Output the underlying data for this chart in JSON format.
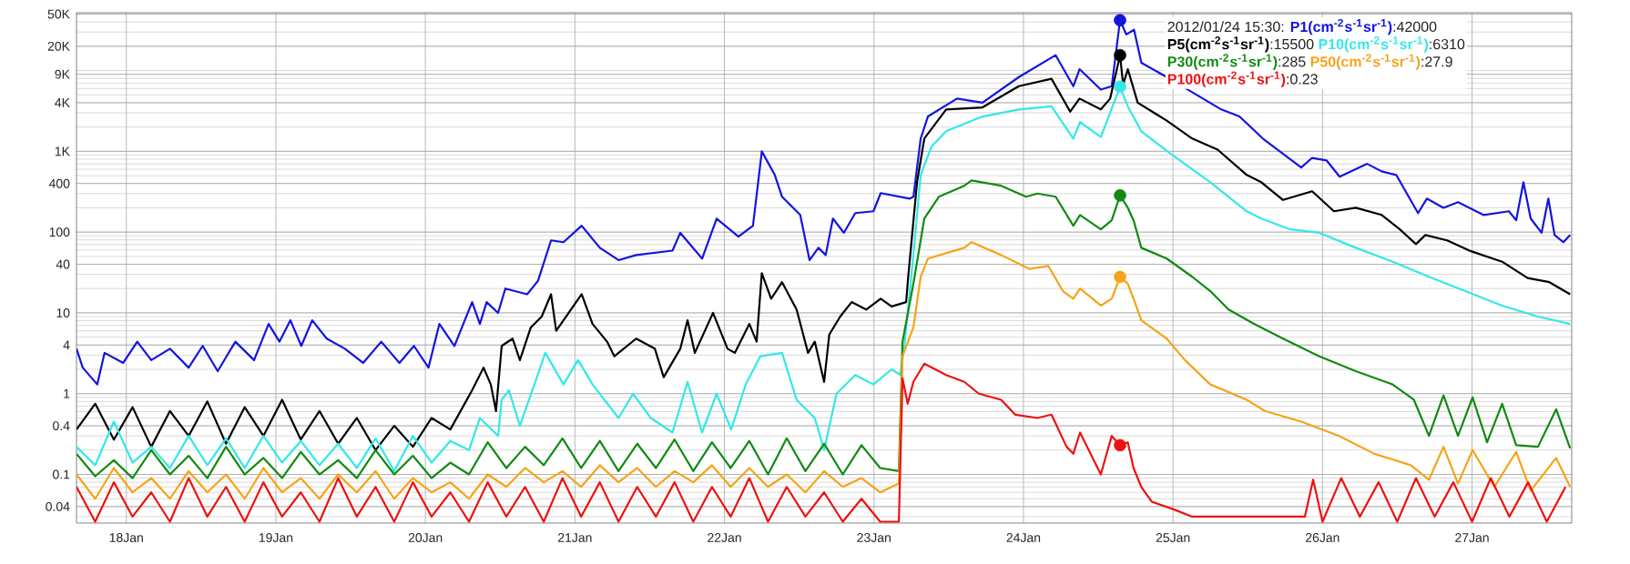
{
  "chart_data": {
    "type": "line",
    "log": "y",
    "grid": true,
    "legend": "top right",
    "xlim": [
      "2012-01-17T16:00",
      "2012-01-27T16:00"
    ],
    "xticks": [
      {
        "value": "2012-01-18",
        "label": "18Jan"
      },
      {
        "value": "2012-01-19",
        "label": "19Jan"
      },
      {
        "value": "2012-01-20",
        "label": "20Jan"
      },
      {
        "value": "2012-01-21",
        "label": "21Jan"
      },
      {
        "value": "2012-01-22",
        "label": "22Jan"
      },
      {
        "value": "2012-01-23",
        "label": "23Jan"
      },
      {
        "value": "2012-01-24",
        "label": "24Jan"
      },
      {
        "value": "2012-01-25",
        "label": "25Jan"
      },
      {
        "value": "2012-01-26",
        "label": "26Jan"
      },
      {
        "value": "2012-01-27",
        "label": "27Jan"
      }
    ],
    "ylim": [
      0.025,
      52000
    ],
    "yticks": [
      0.04,
      0.1,
      0.4,
      1,
      4,
      10,
      40,
      100,
      400,
      {
        "value": 1000,
        "label": "1K"
      },
      {
        "value": 4000,
        "label": "4K"
      },
      {
        "value": 9000,
        "label": "9K"
      },
      {
        "value": 20000,
        "label": "20K"
      },
      {
        "value": 50000,
        "label": "50K"
      }
    ],
    "annotations": [
      "2012/01/24 15:30:",
      ":42000",
      ":15500",
      ":6310",
      ":285",
      ":27.9",
      ":0.23"
    ],
    "series": [
      {
        "type": "scatter",
        "color": "#1414e0",
        "x": [
          "2012-01-24T15:30"
        ],
        "values": [
          42000
        ]
      },
      {
        "type": "scatter",
        "color": "#000000",
        "x": [
          "2012-01-24T15:30"
        ],
        "values": [
          15500
        ]
      },
      {
        "type": "scatter",
        "color": "#33e8e8",
        "x": [
          "2012-01-24T15:30"
        ],
        "values": [
          6310
        ]
      },
      {
        "type": "scatter",
        "color": "#128a12",
        "x": [
          "2012-01-24T15:30"
        ],
        "values": [
          285
        ]
      },
      {
        "type": "scatter",
        "color": "#f5a418",
        "x": [
          "2012-01-24T15:30"
        ],
        "values": [
          27.9
        ]
      },
      {
        "type": "scatter",
        "color": "#ee1111",
        "x": [
          "2012-01-24T15:30"
        ],
        "values": [
          0.23
        ]
      },
      {
        "name": "P1(cm$^{-2}$s$^{-1}$sr$^{-1}$)",
        "color": "#1414e0",
        "x": [
          "2012-01-17T16:00",
          "2012-01-17T17:00",
          "2012-01-17T19:20",
          "2012-01-17T20:30",
          "2012-01-17T23:30",
          "2012-01-18T01:45",
          "2012-01-18T04:00",
          "2012-01-18T07:00",
          "2012-01-18T10:00",
          "2012-01-18T12:15",
          "2012-01-18T14:40",
          "2012-01-18T17:30",
          "2012-01-18T20:30",
          "2012-01-18T22:50",
          "2012-01-19T00:35",
          "2012-01-19T02:20",
          "2012-01-19T04:05",
          "2012-01-19T05:50",
          "2012-01-19T08:10",
          "2012-01-19T11:05",
          "2012-01-19T14:00",
          "2012-01-19T16:55",
          "2012-01-19T19:50",
          "2012-01-19T22:10",
          "2012-01-20T00:30",
          "2012-01-20T02:15",
          "2012-01-20T04:40",
          "2012-01-20T07:30",
          "2012-01-20T08:45",
          "2012-01-20T09:50",
          "2012-01-20T11:40",
          "2012-01-20T12:50",
          "2012-01-20T16:20",
          "2012-01-20T18:05",
          "2012-01-20T20:10",
          "2012-01-20T22:10",
          "2012-01-21T01:05",
          "2012-01-21T04:00",
          "2012-01-21T07:00",
          "2012-01-21T09:50",
          "2012-01-21T15:40",
          "2012-01-21T16:55",
          "2012-01-21T20:25",
          "2012-01-21T22:45",
          "2012-01-22T02:15",
          "2012-01-22T04:35",
          "2012-01-22T06:00",
          "2012-01-22T08:05",
          "2012-01-22T09:15",
          "2012-01-22T12:10",
          "2012-01-22T13:40",
          "2012-01-22T15:05",
          "2012-01-22T16:15",
          "2012-01-22T17:25",
          "2012-01-22T19:10",
          "2012-01-22T21:00",
          "2012-01-22T23:55",
          "2012-01-23T01:05",
          "2012-01-23T05:45",
          "2012-01-23T06:20",
          "2012-01-23T07:30",
          "2012-01-23T08:40",
          "2012-01-23T13:20",
          "2012-01-23T17:25",
          "2012-01-23T23:15",
          "2012-01-24T05:10",
          "2012-01-24T08:00",
          "2012-01-24T09:00",
          "2012-01-24T12:25",
          "2012-01-24T14:10",
          "2012-01-24T15:30",
          "2012-01-24T16:30",
          "2012-01-24T17:45",
          "2012-01-24T18:55",
          "2012-01-24T23:00",
          "2012-01-25T01:55",
          "2012-01-25T07:45",
          "2012-01-25T10:40",
          "2012-01-25T14:25",
          "2012-01-25T20:35",
          "2012-01-25T22:20",
          "2012-01-26T00:40",
          "2012-01-26T02:45",
          "2012-01-26T07:10",
          "2012-01-26T09:30",
          "2012-01-26T11:50",
          "2012-01-26T15:20",
          "2012-01-26T16:45",
          "2012-01-26T19:25",
          "2012-01-26T21:45",
          "2012-01-27T01:50",
          "2012-01-27T05:55",
          "2012-01-27T07:05",
          "2012-01-27T08:15",
          "2012-01-27T09:25",
          "2012-01-27T11:10",
          "2012-01-27T12:15",
          "2012-01-27T13:15",
          "2012-01-27T14:40",
          "2012-01-27T15:45"
        ],
        "values": [
          3.6,
          2.1,
          1.3,
          3.2,
          2.4,
          4.4,
          2.6,
          3.6,
          2.1,
          3.9,
          1.9,
          4.4,
          2.6,
          7.3,
          4.4,
          8.1,
          3.9,
          8.1,
          4.8,
          3.6,
          2.4,
          4.4,
          2.4,
          3.9,
          2.1,
          7.3,
          3.9,
          13.6,
          7.3,
          13.6,
          10,
          20,
          17,
          25,
          79,
          75,
          120,
          64,
          45,
          52,
          59,
          98,
          47,
          147,
          88,
          120,
          1000,
          510,
          274,
          163,
          45,
          64,
          52,
          147,
          98,
          172,
          181,
          304,
          260,
          274,
          1440,
          2700,
          4500,
          4000,
          8300,
          15500,
          6400,
          10400,
          5800,
          6400,
          42000,
          28000,
          32000,
          12500,
          8300,
          6100,
          3300,
          2700,
          1440,
          630,
          830,
          770,
          485,
          700,
          565,
          510,
          172,
          260,
          200,
          235,
          163,
          181,
          140,
          415,
          147,
          98,
          260,
          92,
          75,
          92
        ]
      },
      {
        "name": "P5(cm$^{-2}$s$^{-1}$sr$^{-1}$)",
        "color": "#000000",
        "x": [
          "2012-01-17T16:00",
          "2012-01-17T19:00",
          "2012-01-17T22:00",
          "2012-01-18T01:00",
          "2012-01-18T04:00",
          "2012-01-18T07:00",
          "2012-01-18T10:00",
          "2012-01-18T13:00",
          "2012-01-18T16:00",
          "2012-01-18T19:00",
          "2012-01-18T22:00",
          "2012-01-19T01:00",
          "2012-01-19T04:00",
          "2012-01-19T07:00",
          "2012-01-19T10:00",
          "2012-01-19T13:00",
          "2012-01-19T16:00",
          "2012-01-19T19:00",
          "2012-01-19T22:00",
          "2012-01-20T01:00",
          "2012-01-20T04:00",
          "2012-01-20T07:30",
          "2012-01-20T09:20",
          "2012-01-20T10:30",
          "2012-01-20T11:20",
          "2012-01-20T12:15",
          "2012-01-20T14:00",
          "2012-01-20T15:10",
          "2012-01-20T16:55",
          "2012-01-20T18:40",
          "2012-01-20T20:10",
          "2012-01-20T21:00",
          "2012-01-21T01:05",
          "2012-01-21T02:50",
          "2012-01-21T05:10",
          "2012-01-21T06:20",
          "2012-01-21T09:50",
          "2012-01-21T12:50",
          "2012-01-21T14:15",
          "2012-01-21T16:55",
          "2012-01-21T18:05",
          "2012-01-21T19:15",
          "2012-01-21T22:10",
          "2012-01-22T00:30",
          "2012-01-22T01:40",
          "2012-01-22T04:00",
          "2012-01-22T05:10",
          "2012-01-22T06:00",
          "2012-01-22T07:30",
          "2012-01-22T09:15",
          "2012-01-22T11:35",
          "2012-01-22T13:25",
          "2012-01-22T14:30",
          "2012-01-22T16:00",
          "2012-01-22T16:50",
          "2012-01-22T18:35",
          "2012-01-22T20:25",
          "2012-01-22T22:45",
          "2012-01-23T01:05",
          "2012-01-23T02:50",
          "2012-01-23T05:10",
          "2012-01-23T05:30",
          "2012-01-23T06:55",
          "2012-01-23T08:05",
          "2012-01-23T11:35",
          "2012-01-23T17:25",
          "2012-01-23T23:15",
          "2012-01-24T04:30",
          "2012-01-24T07:30",
          "2012-01-24T09:00",
          "2012-01-24T12:25",
          "2012-01-24T13:55",
          "2012-01-24T15:30",
          "2012-01-24T16:00",
          "2012-01-24T16:45",
          "2012-01-24T18:20",
          "2012-01-24T23:00",
          "2012-01-25T03:05",
          "2012-01-25T07:10",
          "2012-01-25T11:50",
          "2012-01-25T14:10",
          "2012-01-25T17:40",
          "2012-01-25T22:20",
          "2012-01-26T01:50",
          "2012-01-26T05:20",
          "2012-01-26T09:30",
          "2012-01-26T12:25",
          "2012-01-26T15:00",
          "2012-01-26T16:30",
          "2012-01-26T20:00",
          "2012-01-26T23:50",
          "2012-01-27T04:50",
          "2012-01-27T08:55",
          "2012-01-27T12:25",
          "2012-01-27T15:45"
        ],
        "values": [
          0.36,
          0.75,
          0.27,
          0.68,
          0.22,
          0.61,
          0.3,
          0.8,
          0.24,
          0.68,
          0.3,
          0.84,
          0.27,
          0.61,
          0.24,
          0.5,
          0.2,
          0.4,
          0.22,
          0.5,
          0.36,
          1.1,
          2.1,
          1.3,
          0.61,
          3.9,
          4.8,
          2.6,
          6.6,
          9,
          17,
          6,
          17,
          7.3,
          4.4,
          2.9,
          4.8,
          3.6,
          1.6,
          3.6,
          8.1,
          3.2,
          10,
          3.6,
          3.2,
          7.3,
          4.4,
          31,
          15,
          24,
          11,
          3.2,
          4.4,
          1.4,
          5.4,
          9,
          13.6,
          11,
          15,
          12,
          13.6,
          28,
          415,
          1440,
          3300,
          3500,
          6400,
          7900,
          3100,
          4500,
          3300,
          4500,
          15500,
          6700,
          10400,
          4000,
          2400,
          1440,
          1050,
          510,
          415,
          250,
          320,
          181,
          200,
          163,
          108,
          71,
          92,
          79,
          58,
          43,
          27,
          24,
          17
        ]
      },
      {
        "name": "P10(cm$^{-2}$s$^{-1}$sr$^{-1}$)",
        "color": "#33e8e8",
        "x": [
          "2012-01-17T16:00",
          "2012-01-17T19:00",
          "2012-01-17T22:00",
          "2012-01-18T01:00",
          "2012-01-18T04:00",
          "2012-01-18T07:00",
          "2012-01-18T10:00",
          "2012-01-18T13:00",
          "2012-01-18T16:00",
          "2012-01-18T19:00",
          "2012-01-18T22:00",
          "2012-01-19T01:00",
          "2012-01-19T04:00",
          "2012-01-19T07:00",
          "2012-01-19T10:00",
          "2012-01-19T13:00",
          "2012-01-19T16:00",
          "2012-01-19T19:00",
          "2012-01-19T22:00",
          "2012-01-20T01:00",
          "2012-01-20T04:00",
          "2012-01-20T07:00",
          "2012-01-20T08:45",
          "2012-01-20T11:40",
          "2012-01-20T12:15",
          "2012-01-20T13:25",
          "2012-01-20T15:10",
          "2012-01-20T17:30",
          "2012-01-20T19:15",
          "2012-01-20T22:10",
          "2012-01-21T00:30",
          "2012-01-21T02:50",
          "2012-01-21T07:00",
          "2012-01-21T09:20",
          "2012-01-21T12:10",
          "2012-01-21T15:40",
          "2012-01-21T18:05",
          "2012-01-21T20:25",
          "2012-01-21T22:45",
          "2012-01-22T01:05",
          "2012-01-22T03:25",
          "2012-01-22T05:45",
          "2012-01-22T09:15",
          "2012-01-22T11:35",
          "2012-01-22T14:30",
          "2012-01-22T16:00",
          "2012-01-22T18:00",
          "2012-01-22T21:00",
          "2012-01-22T23:55",
          "2012-01-23T02:50",
          "2012-01-23T04:15",
          "2012-01-23T04:50",
          "2012-01-23T06:20",
          "2012-01-23T07:30",
          "2012-01-23T09:15",
          "2012-01-23T11:35",
          "2012-01-23T17:25",
          "2012-01-23T23:15",
          "2012-01-24T04:30",
          "2012-01-24T08:00",
          "2012-01-24T09:05",
          "2012-01-24T12:25",
          "2012-01-24T15:30",
          "2012-01-24T16:45",
          "2012-01-24T18:55",
          "2012-01-24T23:30",
          "2012-01-25T06:00",
          "2012-01-25T11:50",
          "2012-01-25T14:10",
          "2012-01-25T18:50",
          "2012-01-25T23:30",
          "2012-01-26T05:20",
          "2012-01-26T11:15",
          "2012-01-26T17:05",
          "2012-01-26T22:55",
          "2012-01-27T04:50",
          "2012-01-27T10:35",
          "2012-01-27T15:45"
        ],
        "values": [
          0.22,
          0.13,
          0.45,
          0.14,
          0.22,
          0.12,
          0.3,
          0.13,
          0.28,
          0.12,
          0.3,
          0.14,
          0.26,
          0.13,
          0.24,
          0.12,
          0.28,
          0.11,
          0.3,
          0.14,
          0.26,
          0.2,
          0.5,
          0.3,
          0.84,
          1.1,
          0.4,
          1.3,
          3.2,
          1.3,
          2.6,
          1.3,
          0.5,
          1,
          0.5,
          0.33,
          1.4,
          0.33,
          1,
          0.36,
          1.3,
          2.9,
          3.2,
          0.84,
          0.5,
          0.2,
          1,
          1.7,
          1.3,
          2,
          1.7,
          3.6,
          52,
          510,
          1150,
          1770,
          2700,
          3300,
          3600,
          1440,
          2300,
          1500,
          6310,
          3600,
          1770,
          950,
          415,
          181,
          147,
          108,
          98,
          64,
          43,
          28,
          18.6,
          12.3,
          9,
          7.3
        ]
      },
      {
        "name": "P30(cm$^{-2}$s$^{-1}$sr$^{-1}$)",
        "color": "#128a12",
        "x": [
          "2012-01-17T16:00",
          "2012-01-17T19:00",
          "2012-01-17T22:00",
          "2012-01-18T01:00",
          "2012-01-18T04:00",
          "2012-01-18T07:00",
          "2012-01-18T10:00",
          "2012-01-18T13:00",
          "2012-01-18T16:00",
          "2012-01-18T19:00",
          "2012-01-18T22:00",
          "2012-01-19T01:00",
          "2012-01-19T04:00",
          "2012-01-19T07:00",
          "2012-01-19T10:00",
          "2012-01-19T13:00",
          "2012-01-19T16:00",
          "2012-01-19T19:00",
          "2012-01-19T22:00",
          "2012-01-20T01:00",
          "2012-01-20T04:00",
          "2012-01-20T07:00",
          "2012-01-20T10:00",
          "2012-01-20T13:00",
          "2012-01-20T16:00",
          "2012-01-20T19:00",
          "2012-01-20T22:00",
          "2012-01-21T01:00",
          "2012-01-21T04:00",
          "2012-01-21T07:00",
          "2012-01-21T10:00",
          "2012-01-21T13:00",
          "2012-01-21T16:00",
          "2012-01-21T19:00",
          "2012-01-21T22:00",
          "2012-01-22T01:00",
          "2012-01-22T04:00",
          "2012-01-22T07:00",
          "2012-01-22T10:00",
          "2012-01-22T13:00",
          "2012-01-22T16:00",
          "2012-01-22T19:00",
          "2012-01-22T22:00",
          "2012-01-23T01:00",
          "2012-01-23T04:00",
          "2012-01-23T04:35",
          "2012-01-23T06:20",
          "2012-01-23T08:05",
          "2012-01-23T10:25",
          "2012-01-23T14:30",
          "2012-01-23T15:40",
          "2012-01-23T20:25",
          "2012-01-24T00:25",
          "2012-01-24T02:15",
          "2012-01-24T05:10",
          "2012-01-24T08:00",
          "2012-01-24T09:05",
          "2012-01-24T12:25",
          "2012-01-24T14:10",
          "2012-01-24T15:30",
          "2012-01-24T16:45",
          "2012-01-24T17:40",
          "2012-01-24T18:55",
          "2012-01-24T23:00",
          "2012-01-25T03:05",
          "2012-01-25T06:00",
          "2012-01-25T08:55",
          "2012-01-25T13:00",
          "2012-01-25T17:40",
          "2012-01-25T23:30",
          "2012-01-26T05:20",
          "2012-01-26T11:15",
          "2012-01-26T14:40",
          "2012-01-26T17:05",
          "2012-01-26T19:25",
          "2012-01-26T21:45",
          "2012-01-27T00:05",
          "2012-01-27T02:25",
          "2012-01-27T04:50",
          "2012-01-27T07:05",
          "2012-01-27T10:35",
          "2012-01-27T13:30",
          "2012-01-27T15:45"
        ],
        "values": [
          0.18,
          0.095,
          0.15,
          0.09,
          0.2,
          0.1,
          0.17,
          0.09,
          0.22,
          0.1,
          0.16,
          0.09,
          0.19,
          0.1,
          0.15,
          0.09,
          0.2,
          0.1,
          0.17,
          0.09,
          0.14,
          0.1,
          0.25,
          0.12,
          0.22,
          0.13,
          0.28,
          0.12,
          0.26,
          0.11,
          0.24,
          0.12,
          0.27,
          0.11,
          0.25,
          0.12,
          0.26,
          0.1,
          0.28,
          0.11,
          0.24,
          0.1,
          0.23,
          0.12,
          0.11,
          4.4,
          23,
          147,
          274,
          375,
          435,
          375,
          274,
          300,
          274,
          120,
          163,
          108,
          140,
          285,
          200,
          140,
          64,
          47,
          28,
          18.6,
          11,
          7.3,
          4.8,
          2.9,
          1.9,
          1.3,
          0.84,
          0.3,
          0.95,
          0.3,
          0.9,
          0.25,
          0.75,
          0.23,
          0.22,
          0.64,
          0.21
        ]
      },
      {
        "name": "P50(cm$^{-2}$s$^{-1}$sr$^{-1}$)",
        "color": "#f5a418",
        "x": [
          "2012-01-17T16:00",
          "2012-01-17T19:00",
          "2012-01-17T22:00",
          "2012-01-18T01:00",
          "2012-01-18T04:00",
          "2012-01-18T07:00",
          "2012-01-18T10:00",
          "2012-01-18T13:00",
          "2012-01-18T16:00",
          "2012-01-18T19:00",
          "2012-01-18T22:00",
          "2012-01-19T01:00",
          "2012-01-19T04:00",
          "2012-01-19T07:00",
          "2012-01-19T10:00",
          "2012-01-19T13:00",
          "2012-01-19T16:00",
          "2012-01-19T19:00",
          "2012-01-19T22:00",
          "2012-01-20T01:00",
          "2012-01-20T04:00",
          "2012-01-20T07:00",
          "2012-01-20T10:00",
          "2012-01-20T13:00",
          "2012-01-20T16:00",
          "2012-01-20T19:00",
          "2012-01-20T22:00",
          "2012-01-21T01:00",
          "2012-01-21T04:00",
          "2012-01-21T07:00",
          "2012-01-21T10:00",
          "2012-01-21T13:00",
          "2012-01-21T16:00",
          "2012-01-21T19:00",
          "2012-01-21T22:00",
          "2012-01-22T01:00",
          "2012-01-22T04:00",
          "2012-01-22T07:00",
          "2012-01-22T10:00",
          "2012-01-22T13:00",
          "2012-01-22T16:00",
          "2012-01-22T19:00",
          "2012-01-22T22:00",
          "2012-01-23T01:00",
          "2012-01-23T04:00",
          "2012-01-23T04:35",
          "2012-01-23T06:20",
          "2012-01-23T07:30",
          "2012-01-23T08:40",
          "2012-01-23T14:30",
          "2012-01-23T15:40",
          "2012-01-23T20:25",
          "2012-01-24T01:00",
          "2012-01-24T04:00",
          "2012-01-24T06:20",
          "2012-01-24T08:00",
          "2012-01-24T09:05",
          "2012-01-24T12:25",
          "2012-01-24T14:10",
          "2012-01-24T15:30",
          "2012-01-24T16:45",
          "2012-01-24T17:40",
          "2012-01-24T18:55",
          "2012-01-24T23:00",
          "2012-01-25T01:55",
          "2012-01-25T06:00",
          "2012-01-25T11:50",
          "2012-01-25T14:45",
          "2012-01-25T20:35",
          "2012-01-26T02:40",
          "2012-01-26T08:20",
          "2012-01-26T14:10",
          "2012-01-26T17:05",
          "2012-01-26T19:25",
          "2012-01-26T21:45",
          "2012-01-27T00:05",
          "2012-01-27T03:35",
          "2012-01-27T07:05",
          "2012-01-27T09:25",
          "2012-01-27T13:30",
          "2012-01-27T15:45"
        ],
        "values": [
          0.1,
          0.05,
          0.12,
          0.06,
          0.09,
          0.05,
          0.11,
          0.06,
          0.1,
          0.05,
          0.12,
          0.06,
          0.09,
          0.05,
          0.1,
          0.06,
          0.11,
          0.05,
          0.09,
          0.06,
          0.08,
          0.05,
          0.1,
          0.07,
          0.12,
          0.08,
          0.11,
          0.07,
          0.13,
          0.08,
          0.12,
          0.07,
          0.11,
          0.08,
          0.13,
          0.07,
          0.12,
          0.07,
          0.1,
          0.06,
          0.11,
          0.07,
          0.09,
          0.06,
          0.077,
          2.9,
          6.6,
          28,
          47,
          64,
          75,
          52,
          35,
          38,
          18.6,
          15,
          20,
          12.3,
          15,
          27.9,
          23,
          15,
          8.1,
          4.8,
          2.6,
          1.3,
          0.84,
          0.61,
          0.45,
          0.3,
          0.18,
          0.13,
          0.086,
          0.22,
          0.077,
          0.2,
          0.07,
          0.19,
          0.063,
          0.16,
          0.07
        ]
      },
      {
        "name": "P100(cm$^{-2}$s$^{-1}$sr$^{-1}$)",
        "color": "#ee1111",
        "x": [
          "2012-01-17T16:00",
          "2012-01-17T19:00",
          "2012-01-17T22:00",
          "2012-01-18T01:00",
          "2012-01-18T04:00",
          "2012-01-18T07:00",
          "2012-01-18T10:00",
          "2012-01-18T13:00",
          "2012-01-18T16:00",
          "2012-01-18T19:00",
          "2012-01-18T22:00",
          "2012-01-19T01:00",
          "2012-01-19T04:00",
          "2012-01-19T07:00",
          "2012-01-19T10:00",
          "2012-01-19T13:00",
          "2012-01-19T16:00",
          "2012-01-19T19:00",
          "2012-01-19T22:00",
          "2012-01-20T01:00",
          "2012-01-20T04:00",
          "2012-01-20T07:00",
          "2012-01-20T10:00",
          "2012-01-20T13:00",
          "2012-01-20T16:00",
          "2012-01-20T19:00",
          "2012-01-20T22:00",
          "2012-01-21T01:00",
          "2012-01-21T04:00",
          "2012-01-21T07:00",
          "2012-01-21T10:00",
          "2012-01-21T13:00",
          "2012-01-21T16:00",
          "2012-01-21T19:00",
          "2012-01-21T22:00",
          "2012-01-22T01:00",
          "2012-01-22T04:00",
          "2012-01-22T07:00",
          "2012-01-22T10:00",
          "2012-01-22T13:00",
          "2012-01-22T16:00",
          "2012-01-22T19:00",
          "2012-01-22T22:00",
          "2012-01-23T01:00",
          "2012-01-23T04:00",
          "2012-01-23T04:35",
          "2012-01-23T05:25",
          "2012-01-23T06:20",
          "2012-01-23T08:05",
          "2012-01-23T11:35",
          "2012-01-23T14:30",
          "2012-01-23T16:50",
          "2012-01-23T20:25",
          "2012-01-23T22:40",
          "2012-01-24T02:15",
          "2012-01-24T04:30",
          "2012-01-24T06:55",
          "2012-01-24T08:00",
          "2012-01-24T09:05",
          "2012-01-24T12:25",
          "2012-01-24T14:10",
          "2012-01-24T15:30",
          "2012-01-24T16:45",
          "2012-01-24T17:40",
          "2012-01-24T18:55",
          "2012-01-24T20:35",
          "2012-01-25T00:05",
          "2012-01-25T03:05",
          "2012-01-25T21:10",
          "2012-01-25T22:30",
          "2012-01-26T00:00",
          "2012-01-26T03:00",
          "2012-01-26T06:00",
          "2012-01-26T09:00",
          "2012-01-26T12:00",
          "2012-01-26T15:00",
          "2012-01-26T18:00",
          "2012-01-26T21:00",
          "2012-01-27T00:00",
          "2012-01-27T03:00",
          "2012-01-27T06:00",
          "2012-01-27T09:00",
          "2012-01-27T12:00",
          "2012-01-27T15:00"
        ],
        "values": [
          0.07,
          0.026,
          0.08,
          0.03,
          0.06,
          0.026,
          0.09,
          0.03,
          0.07,
          0.026,
          0.08,
          0.03,
          0.06,
          0.026,
          0.09,
          0.03,
          0.07,
          0.026,
          0.08,
          0.03,
          0.06,
          0.026,
          0.08,
          0.03,
          0.07,
          0.026,
          0.09,
          0.03,
          0.08,
          0.026,
          0.07,
          0.03,
          0.08,
          0.026,
          0.07,
          0.03,
          0.09,
          0.026,
          0.07,
          0.03,
          0.06,
          0.026,
          0.05,
          0.026,
          0.026,
          1.55,
          0.75,
          1.4,
          2.35,
          1.7,
          1.4,
          1,
          0.84,
          0.55,
          0.5,
          0.55,
          0.22,
          0.18,
          0.33,
          0.1,
          0.3,
          0.23,
          0.25,
          0.12,
          0.07,
          0.046,
          0.037,
          0.03,
          0.03,
          0.086,
          0.026,
          0.09,
          0.03,
          0.08,
          0.026,
          0.09,
          0.03,
          0.08,
          0.026,
          0.09,
          0.03,
          0.08,
          0.026,
          0.07
        ]
      }
    ]
  }
}
